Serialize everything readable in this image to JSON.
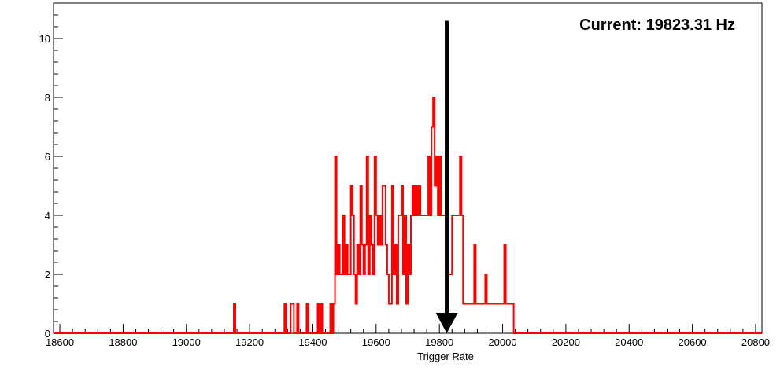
{
  "chart_data": {
    "type": "histogram",
    "title": "",
    "xlabel": "Trigger Rate",
    "ylabel": "",
    "xlim": [
      18580,
      20820
    ],
    "ylim": [
      0,
      11.2
    ],
    "x_ticks": [
      18600,
      18800,
      19000,
      19200,
      19400,
      19600,
      19800,
      20000,
      20200,
      20400,
      20600,
      20800
    ],
    "y_ticks": [
      0,
      2,
      4,
      6,
      8,
      10
    ],
    "grid": false,
    "legend": "none",
    "bin_width": 5,
    "series": [
      {
        "color": "#ff0000",
        "bins": [
          [
            19150,
            1
          ],
          [
            19310,
            1
          ],
          [
            19330,
            1
          ],
          [
            19335,
            1
          ],
          [
            19350,
            1
          ],
          [
            19380,
            1
          ],
          [
            19415,
            1
          ],
          [
            19425,
            1
          ],
          [
            19455,
            1
          ],
          [
            19465,
            1
          ],
          [
            19470,
            6
          ],
          [
            19475,
            2
          ],
          [
            19480,
            3
          ],
          [
            19485,
            2
          ],
          [
            19490,
            2
          ],
          [
            19495,
            4
          ],
          [
            19500,
            2
          ],
          [
            19505,
            3
          ],
          [
            19510,
            2
          ],
          [
            19515,
            2
          ],
          [
            19520,
            5
          ],
          [
            19525,
            4
          ],
          [
            19530,
            2
          ],
          [
            19535,
            1
          ],
          [
            19540,
            3
          ],
          [
            19545,
            2
          ],
          [
            19550,
            5
          ],
          [
            19555,
            3
          ],
          [
            19560,
            2
          ],
          [
            19565,
            3
          ],
          [
            19570,
            6
          ],
          [
            19575,
            2
          ],
          [
            19580,
            4
          ],
          [
            19585,
            3
          ],
          [
            19590,
            2
          ],
          [
            19595,
            6
          ],
          [
            19600,
            4
          ],
          [
            19605,
            3
          ],
          [
            19610,
            4
          ],
          [
            19615,
            3
          ],
          [
            19620,
            5
          ],
          [
            19625,
            5
          ],
          [
            19630,
            3
          ],
          [
            19635,
            2
          ],
          [
            19640,
            1
          ],
          [
            19645,
            1
          ],
          [
            19650,
            5
          ],
          [
            19655,
            2
          ],
          [
            19660,
            3
          ],
          [
            19665,
            1
          ],
          [
            19670,
            4
          ],
          [
            19675,
            4
          ],
          [
            19680,
            5
          ],
          [
            19685,
            2
          ],
          [
            19690,
            4
          ],
          [
            19695,
            1
          ],
          [
            19700,
            3
          ],
          [
            19705,
            2
          ],
          [
            19710,
            4
          ],
          [
            19715,
            5
          ],
          [
            19720,
            4
          ],
          [
            19725,
            5
          ],
          [
            19730,
            4
          ],
          [
            19735,
            5
          ],
          [
            19740,
            4
          ],
          [
            19745,
            4
          ],
          [
            19750,
            4
          ],
          [
            19755,
            4
          ],
          [
            19760,
            4
          ],
          [
            19765,
            6
          ],
          [
            19770,
            4
          ],
          [
            19775,
            7
          ],
          [
            19780,
            8
          ],
          [
            19785,
            5
          ],
          [
            19790,
            6
          ],
          [
            19795,
            4
          ],
          [
            19800,
            6
          ],
          [
            19805,
            4
          ],
          [
            19810,
            4
          ],
          [
            19815,
            4
          ],
          [
            19820,
            6
          ],
          [
            19825,
            2
          ],
          [
            19830,
            2
          ],
          [
            19835,
            2
          ],
          [
            19840,
            4
          ],
          [
            19845,
            4
          ],
          [
            19850,
            4
          ],
          [
            19855,
            4
          ],
          [
            19860,
            4
          ],
          [
            19865,
            6
          ],
          [
            19870,
            4
          ],
          [
            19875,
            1
          ],
          [
            19880,
            1
          ],
          [
            19885,
            1
          ],
          [
            19890,
            1
          ],
          [
            19895,
            1
          ],
          [
            19900,
            1
          ],
          [
            19905,
            1
          ],
          [
            19910,
            3
          ],
          [
            19915,
            1
          ],
          [
            19920,
            1
          ],
          [
            19925,
            1
          ],
          [
            19930,
            1
          ],
          [
            19935,
            1
          ],
          [
            19940,
            1
          ],
          [
            19945,
            2
          ],
          [
            19950,
            1
          ],
          [
            19955,
            1
          ],
          [
            19960,
            1
          ],
          [
            19965,
            1
          ],
          [
            19970,
            1
          ],
          [
            19975,
            1
          ],
          [
            19980,
            1
          ],
          [
            19985,
            1
          ],
          [
            19990,
            1
          ],
          [
            19995,
            1
          ],
          [
            20000,
            1
          ],
          [
            20005,
            3
          ],
          [
            20010,
            1
          ],
          [
            20015,
            1
          ],
          [
            20020,
            1
          ],
          [
            20025,
            1
          ],
          [
            20030,
            1
          ]
        ]
      }
    ],
    "marker": {
      "x": 19823.31,
      "y_top": 10.6,
      "label": "Current: 19823.31 Hz",
      "color": "#000000"
    }
  }
}
